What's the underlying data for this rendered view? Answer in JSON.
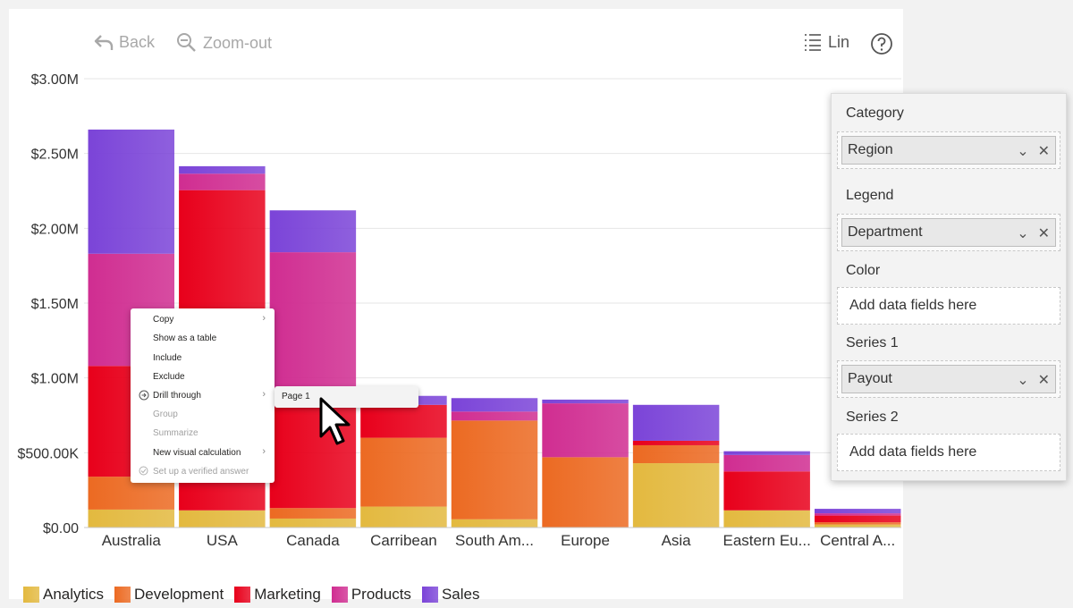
{
  "toolbar": {
    "back_label": "Back",
    "zoom_out_label": "Zoom-out",
    "lin_label": "Lin",
    "help_icon": "help-icon"
  },
  "chart_data": {
    "type": "bar",
    "stacked": true,
    "categories": [
      "Australia",
      "USA",
      "Canada",
      "Carribean",
      "South Am...",
      "Europe",
      "Asia",
      "Eastern Eu...",
      "Central A..."
    ],
    "series": [
      {
        "name": "Analytics",
        "color": "#e3b93f",
        "values": [
          120000,
          115000,
          60000,
          140000,
          55000,
          0,
          430000,
          115000,
          20000
        ]
      },
      {
        "name": "Development",
        "color": "#ec6a22",
        "values": [
          220000,
          0,
          70000,
          460000,
          660000,
          470000,
          120000,
          0,
          15000
        ]
      },
      {
        "name": "Marketing",
        "color": "#e8001b",
        "values": [
          740000,
          2140000,
          680000,
          220000,
          0,
          0,
          30000,
          260000,
          45000
        ]
      },
      {
        "name": "Products",
        "color": "#d02d91",
        "values": [
          750000,
          110000,
          1030000,
          0,
          60000,
          360000,
          0,
          110000,
          15000
        ]
      },
      {
        "name": "Sales",
        "color": "#7b44d8",
        "values": [
          830000,
          50000,
          280000,
          60000,
          90000,
          25000,
          240000,
          25000,
          30000
        ]
      }
    ],
    "ylim": [
      0,
      3000000
    ],
    "yticks": [
      "$0.00",
      "$500.00K",
      "$1.00M",
      "$1.50M",
      "$2.00M",
      "$2.50M",
      "$3.00M"
    ],
    "ytick_values": [
      0,
      500000,
      1000000,
      1500000,
      2000000,
      2500000,
      3000000
    ],
    "legend_position": "bottom-left"
  },
  "legend": [
    {
      "label": "Analytics",
      "color": "#e3b93f"
    },
    {
      "label": "Development",
      "color": "#ec6a22"
    },
    {
      "label": "Marketing",
      "color": "#e8001b"
    },
    {
      "label": "Products",
      "color": "#d02d91"
    },
    {
      "label": "Sales",
      "color": "#7b44d8"
    }
  ],
  "field_pane": {
    "category_label": "Category",
    "category_value": "Region",
    "legend_label": "Legend",
    "legend_value": "Department",
    "color_label": "Color",
    "color_placeholder": "Add data fields here",
    "series1_label": "Series 1",
    "series1_value": "Payout",
    "series2_label": "Series 2",
    "series2_placeholder": "Add data fields here"
  },
  "context_menu": {
    "copy": "Copy",
    "show_as_table": "Show as a table",
    "include": "Include",
    "exclude": "Exclude",
    "drill_through": "Drill through",
    "group": "Group",
    "summarize": "Summarize",
    "new_visual_calculation": "New visual calculation",
    "set_up_verified_answer": "Set up a verified answer"
  },
  "submenu": {
    "page1": "Page 1"
  }
}
